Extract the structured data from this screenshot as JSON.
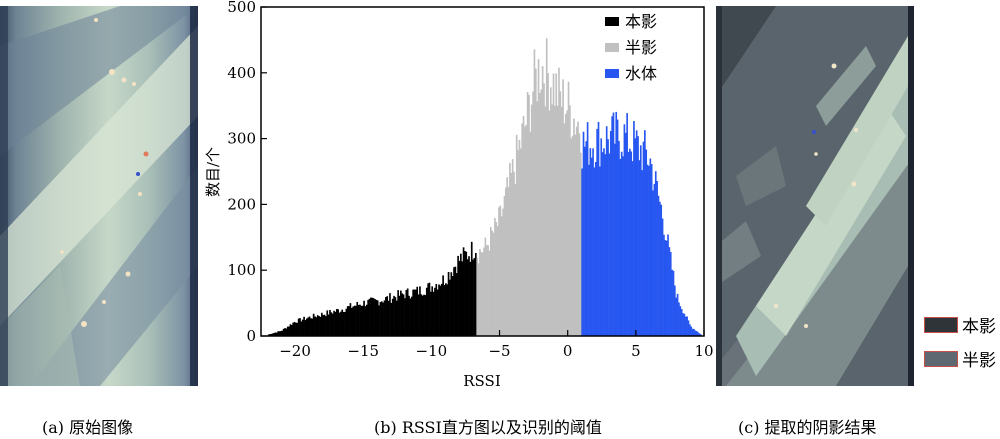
{
  "captions": {
    "a": "(a) 原始图像",
    "b": "(b) RSSI直方图以及识别的阈值",
    "c": "(c) 提取的阴影结果"
  },
  "panel_c_legend": {
    "items": [
      {
        "label": "本影",
        "color": "#2f3439"
      },
      {
        "label": "半影",
        "color": "#5d6870"
      }
    ]
  },
  "chart_data": {
    "type": "bar",
    "xlabel": "RSSI",
    "ylabel": "数目/个",
    "xlim": [
      -22.5,
      10
    ],
    "ylim": [
      0,
      500
    ],
    "xticks": [
      -20,
      -15,
      -10,
      -5,
      0,
      5,
      10
    ],
    "yticks": [
      0,
      100,
      200,
      300,
      400,
      500
    ],
    "legend_position": "top-right",
    "thresholds": [
      -6.7,
      1.0
    ],
    "series": [
      {
        "name": "本影",
        "color": "#000000",
        "x_range": [
          -22.0,
          -6.7
        ],
        "points": [
          [
            -22,
            2
          ],
          [
            -21,
            8
          ],
          [
            -20,
            22
          ],
          [
            -19,
            28
          ],
          [
            -18,
            33
          ],
          [
            -17,
            38
          ],
          [
            -16,
            44
          ],
          [
            -15,
            50
          ],
          [
            -14,
            53
          ],
          [
            -13,
            58
          ],
          [
            -12,
            64
          ],
          [
            -11,
            68
          ],
          [
            -10,
            75
          ],
          [
            -9,
            87
          ],
          [
            -8,
            115
          ],
          [
            -7,
            130
          ],
          [
            -6.7,
            140
          ]
        ]
      },
      {
        "name": "半影",
        "color": "#c0c0c0",
        "x_range": [
          -6.7,
          1.0
        ],
        "points": [
          [
            -6.7,
            125
          ],
          [
            -6,
            135
          ],
          [
            -5,
            175
          ],
          [
            -4,
            250
          ],
          [
            -3,
            330
          ],
          [
            -2.5,
            380
          ],
          [
            -2,
            410
          ],
          [
            -1.5,
            400
          ],
          [
            -1,
            380
          ],
          [
            -0.5,
            360
          ],
          [
            0,
            350
          ],
          [
            0.5,
            330
          ],
          [
            1.0,
            320
          ]
        ]
      },
      {
        "name": "水体",
        "color": "#2757f0",
        "x_range": [
          1.0,
          9.8
        ],
        "points": [
          [
            1.0,
            290
          ],
          [
            2,
            295
          ],
          [
            3,
            300
          ],
          [
            4,
            305
          ],
          [
            5,
            290
          ],
          [
            6,
            270
          ],
          [
            7,
            180
          ],
          [
            8,
            60
          ],
          [
            9,
            15
          ],
          [
            9.8,
            2
          ]
        ]
      }
    ]
  }
}
